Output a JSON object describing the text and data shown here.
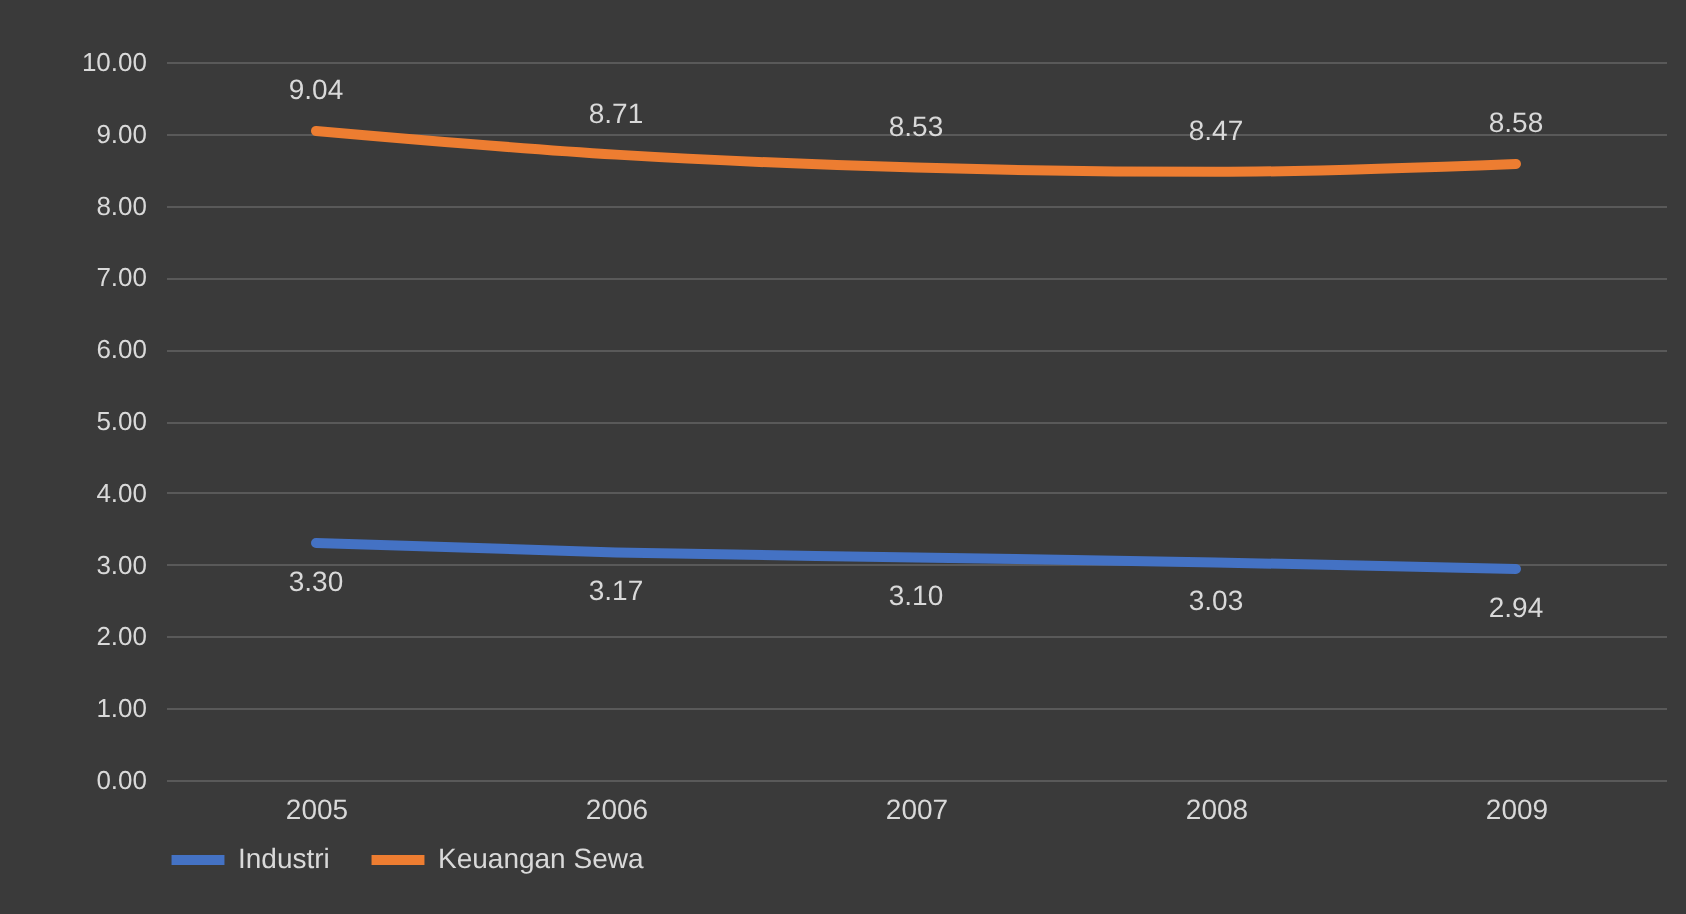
{
  "chart_data": {
    "type": "line",
    "categories": [
      "2005",
      "2006",
      "2007",
      "2008",
      "2009"
    ],
    "series": [
      {
        "name": "Industri",
        "color": "#4472c4",
        "values": [
          3.3,
          3.17,
          3.1,
          3.03,
          2.94
        ],
        "value_labels": [
          "3.30",
          "3.17",
          "3.10",
          "3.03",
          "2.94"
        ]
      },
      {
        "name": "Keuangan Sewa",
        "color": "#ed7d31",
        "values": [
          9.04,
          8.71,
          8.53,
          8.47,
          8.58
        ],
        "value_labels": [
          "9.04",
          "8.71",
          "8.53",
          "8.47",
          "8.58"
        ]
      }
    ],
    "ylim": [
      0,
      10
    ],
    "yticks": [
      {
        "value": 0,
        "label": "0.00"
      },
      {
        "value": 1,
        "label": "1.00"
      },
      {
        "value": 2,
        "label": "2.00"
      },
      {
        "value": 3,
        "label": "3.00"
      },
      {
        "value": 4,
        "label": "4.00"
      },
      {
        "value": 5,
        "label": "5.00"
      },
      {
        "value": 6,
        "label": "6.00"
      },
      {
        "value": 7,
        "label": "7.00"
      },
      {
        "value": 8,
        "label": "8.00"
      },
      {
        "value": 9,
        "label": "9.00"
      },
      {
        "value": 10,
        "label": "10.00"
      }
    ],
    "grid": "y",
    "legend": "bottom",
    "marker": "none",
    "line_style": "solid"
  }
}
